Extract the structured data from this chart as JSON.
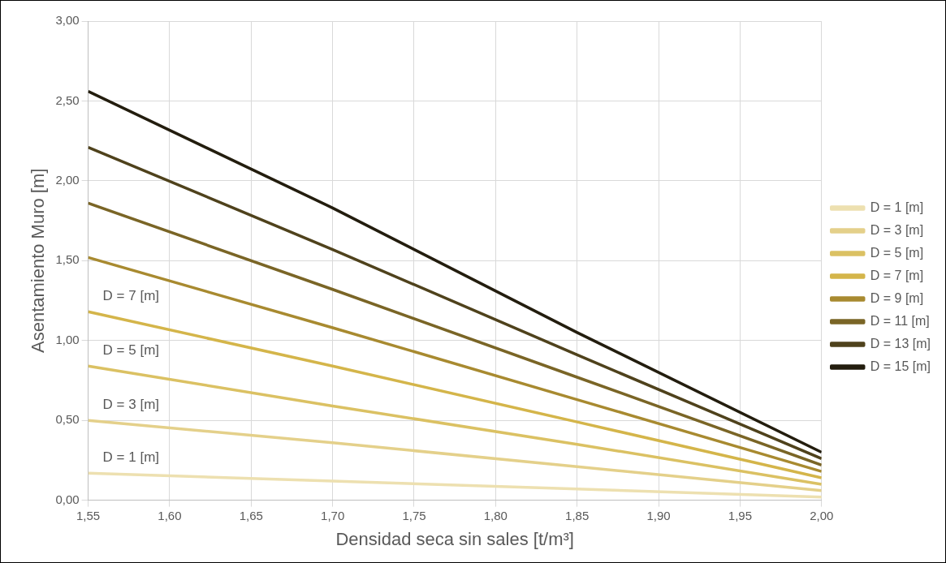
{
  "chart_data": {
    "type": "line",
    "xlabel": "Densidad seca sin sales [t/m³]",
    "ylabel": "Asentamiento Muro [m]",
    "x": [
      1.55,
      1.7,
      1.85,
      2.0
    ],
    "series": [
      {
        "name": "D = 1 [m]",
        "color": "#ede0b0",
        "values": [
          0.17,
          0.12,
          0.07,
          0.02
        ]
      },
      {
        "name": "D = 3 [m]",
        "color": "#e4d08a",
        "values": [
          0.5,
          0.36,
          0.21,
          0.06
        ]
      },
      {
        "name": "D = 5 [m]",
        "color": "#dbc163",
        "values": [
          0.84,
          0.59,
          0.35,
          0.1
        ]
      },
      {
        "name": "D = 7 [m]",
        "color": "#d4b54a",
        "values": [
          1.18,
          0.84,
          0.49,
          0.14
        ]
      },
      {
        "name": "D = 9 [m]",
        "color": "#a88a30",
        "values": [
          1.52,
          1.08,
          0.63,
          0.18
        ]
      },
      {
        "name": "D = 11 [m]",
        "color": "#7a6526",
        "values": [
          1.86,
          1.32,
          0.77,
          0.22
        ]
      },
      {
        "name": "D = 13 [m]",
        "color": "#4f421c",
        "values": [
          2.21,
          1.57,
          0.91,
          0.26
        ]
      },
      {
        "name": "D = 15 [m]",
        "color": "#231d0e",
        "values": [
          2.56,
          1.83,
          1.05,
          0.3
        ]
      }
    ],
    "xlim": [
      1.55,
      2.0
    ],
    "xticks": [
      {
        "value": 1.55,
        "label": "1,55"
      },
      {
        "value": 1.6,
        "label": "1,60"
      },
      {
        "value": 1.65,
        "label": "1,65"
      },
      {
        "value": 1.7,
        "label": "1,70"
      },
      {
        "value": 1.75,
        "label": "1,75"
      },
      {
        "value": 1.8,
        "label": "1,80"
      },
      {
        "value": 1.85,
        "label": "1,85"
      },
      {
        "value": 1.9,
        "label": "1,90"
      },
      {
        "value": 1.95,
        "label": "1,95"
      },
      {
        "value": 2.0,
        "label": "2,00"
      }
    ],
    "ylim": [
      0,
      3
    ],
    "yticks": [
      {
        "value": 0,
        "label": "0,00"
      },
      {
        "value": 0.5,
        "label": "0,50"
      },
      {
        "value": 1,
        "label": "1,00"
      },
      {
        "value": 1.5,
        "label": "1,50"
      },
      {
        "value": 2,
        "label": "2,00"
      },
      {
        "value": 2.5,
        "label": "2,50"
      },
      {
        "value": 3,
        "label": "3,00"
      }
    ],
    "annotations": [
      "D = 1 [m]",
      "D = 3 [m]",
      "D = 5 [m]",
      "D = 7 [m]"
    ],
    "grid": true,
    "legend": "right",
    "marker": "none",
    "line_style": "solid"
  }
}
